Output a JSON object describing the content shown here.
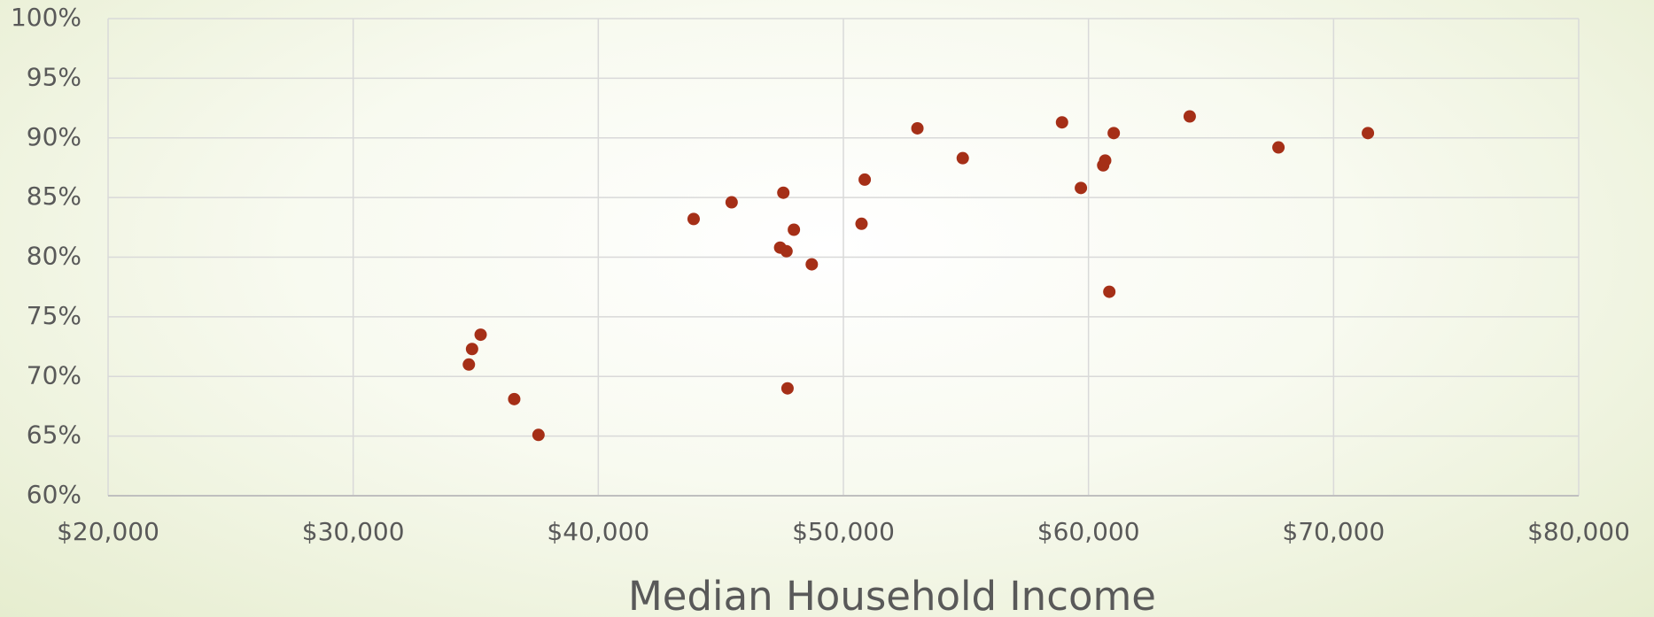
{
  "chart_data": {
    "type": "scatter",
    "x_label": "Median Household Income",
    "color": "#a52f17",
    "grid": true,
    "x": [
      34720,
      34850,
      35200,
      36570,
      37560,
      43890,
      45440,
      47550,
      47420,
      47680,
      47980,
      48710,
      47720,
      50740,
      50870,
      53020,
      54870,
      58920,
      59690,
      60600,
      60680,
      60850,
      61030,
      64130,
      67750,
      71400
    ],
    "values": [
      71.0,
      72.3,
      73.5,
      68.1,
      65.1,
      83.2,
      84.6,
      85.4,
      80.8,
      80.5,
      82.3,
      79.4,
      69.0,
      82.8,
      86.5,
      90.8,
      88.3,
      91.3,
      85.8,
      87.7,
      88.1,
      77.1,
      90.4,
      91.8,
      89.2,
      90.4
    ],
    "xlim": [
      20000,
      80000
    ],
    "xticks": [
      {
        "value": 20000,
        "label": "$20,000"
      },
      {
        "value": 30000,
        "label": "$30,000"
      },
      {
        "value": 40000,
        "label": "$40,000"
      },
      {
        "value": 50000,
        "label": "$50,000"
      },
      {
        "value": 60000,
        "label": "$60,000"
      },
      {
        "value": 70000,
        "label": "$70,000"
      },
      {
        "value": 80000,
        "label": "$80,000"
      }
    ],
    "ylim": [
      60,
      100
    ],
    "yticks": [
      {
        "value": 60,
        "label": "60%"
      },
      {
        "value": 65,
        "label": "65%"
      },
      {
        "value": 70,
        "label": "70%"
      },
      {
        "value": 75,
        "label": "75%"
      },
      {
        "value": 80,
        "label": "80%"
      },
      {
        "value": 85,
        "label": "85%"
      },
      {
        "value": 90,
        "label": "90%"
      },
      {
        "value": 95,
        "label": "95%"
      },
      {
        "value": 100,
        "label": "100%"
      }
    ]
  }
}
